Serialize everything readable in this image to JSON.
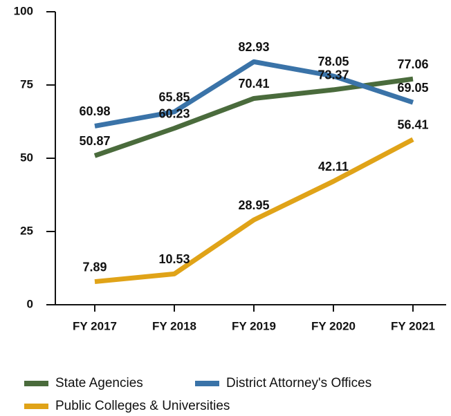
{
  "chart_data": {
    "type": "line",
    "categories": [
      "FY 2017",
      "FY 2018",
      "FY 2019",
      "FY 2020",
      "FY 2021"
    ],
    "series": [
      {
        "name": "State Agencies",
        "color": "#4a6b3c",
        "values": [
          50.87,
          60.23,
          70.41,
          73.37,
          77.06
        ]
      },
      {
        "name": "District Attorney's Offices",
        "color": "#3a73a8",
        "values": [
          60.98,
          65.85,
          82.93,
          78.05,
          69.05
        ]
      },
      {
        "name": "Public Colleges & Universities",
        "color": "#e0a318",
        "values": [
          7.89,
          10.53,
          28.95,
          42.11,
          56.41
        ]
      }
    ],
    "ylim": [
      0,
      100
    ],
    "yticks": [
      0,
      25,
      50,
      75,
      100
    ],
    "grid": false
  }
}
